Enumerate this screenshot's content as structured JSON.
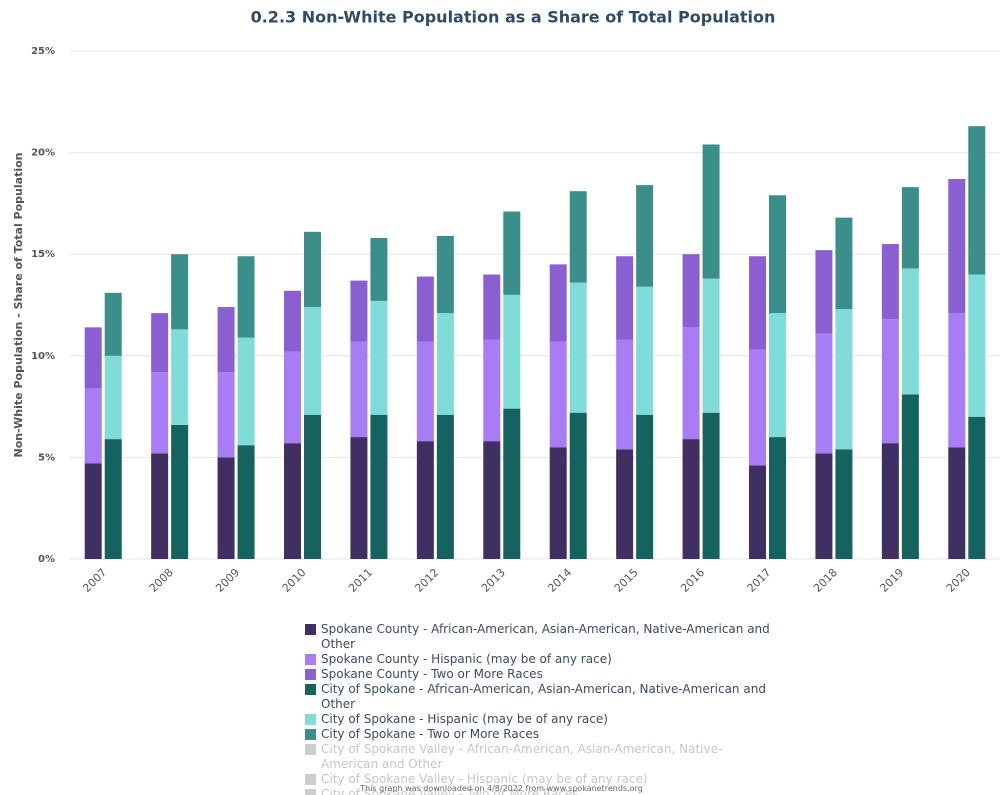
{
  "chart_data": {
    "type": "stacked-grouped-bar",
    "title": "0.2.3 Non-White Population as a Share of Total Population",
    "y_label": "Non-White Population - Share of Total Population",
    "footer": "This graph was downloaded on 4/8/2022 from www.spokanetrends.org",
    "categories": [
      "2007",
      "2008",
      "2009",
      "2010",
      "2011",
      "2012",
      "2013",
      "2014",
      "2015",
      "2016",
      "2017",
      "2018",
      "2019",
      "2020"
    ],
    "ylim": [
      0,
      25
    ],
    "yticks": [
      {
        "value": 0,
        "label": "0%"
      },
      {
        "value": 5,
        "label": "5%"
      },
      {
        "value": 10,
        "label": "10%"
      },
      {
        "value": 15,
        "label": "15%"
      },
      {
        "value": 20,
        "label": "20%"
      },
      {
        "value": 25,
        "label": "25%"
      }
    ],
    "grid": true,
    "series": [
      {
        "name": "Spokane County - African-American, Asian-American, Native-American and Other",
        "stack": "county",
        "color": "#3f2f63",
        "visible": true,
        "values": [
          4.7,
          5.2,
          5.0,
          5.7,
          6.0,
          5.8,
          5.8,
          5.5,
          5.4,
          5.9,
          4.6,
          5.2,
          5.7,
          5.5
        ]
      },
      {
        "name": "Spokane County - Hispanic (may be of any race)",
        "stack": "county",
        "color": "#a77cf5",
        "visible": true,
        "values": [
          3.7,
          4.0,
          4.2,
          4.5,
          4.7,
          4.9,
          5.0,
          5.2,
          5.4,
          5.5,
          5.7,
          5.9,
          6.1,
          6.6
        ]
      },
      {
        "name": "Spokane County - Two or More Races",
        "stack": "county",
        "color": "#8a5fd1",
        "visible": true,
        "values": [
          3.0,
          2.9,
          3.2,
          3.0,
          3.0,
          3.2,
          3.2,
          3.8,
          4.1,
          3.6,
          4.6,
          4.1,
          3.7,
          6.6
        ]
      },
      {
        "name": "City of Spokane - African-American, Asian-American, Native-American and Other",
        "stack": "city",
        "color": "#14635e",
        "visible": true,
        "values": [
          5.9,
          6.6,
          5.6,
          7.1,
          7.1,
          7.1,
          7.4,
          7.2,
          7.1,
          7.2,
          6.0,
          5.4,
          8.1,
          7.0
        ]
      },
      {
        "name": "City of Spokane - Hispanic (may be of any race)",
        "stack": "city",
        "color": "#7fdcd9",
        "visible": true,
        "values": [
          4.1,
          4.7,
          5.3,
          5.3,
          5.6,
          5.0,
          5.6,
          6.4,
          6.3,
          6.6,
          6.1,
          6.9,
          6.2,
          7.0
        ]
      },
      {
        "name": "City of Spokane - Two or More Races",
        "stack": "city",
        "color": "#3a8f8a",
        "visible": true,
        "values": [
          3.1,
          3.7,
          4.0,
          3.7,
          3.1,
          3.8,
          4.1,
          4.5,
          5.0,
          6.6,
          5.8,
          4.5,
          4.0,
          7.3
        ]
      },
      {
        "name": "City of Spokane Valley - African-American, Asian-American, Native-American and Other",
        "stack": "valley",
        "color": "#cccccc",
        "visible": false,
        "values": [
          null,
          null,
          null,
          null,
          null,
          null,
          null,
          null,
          null,
          null,
          null,
          null,
          null,
          null
        ]
      },
      {
        "name": "City of Spokane Valley - Hispanic (may be of any race)",
        "stack": "valley",
        "color": "#cccccc",
        "visible": false,
        "values": [
          null,
          null,
          null,
          null,
          null,
          null,
          null,
          null,
          null,
          null,
          null,
          null,
          null,
          null
        ]
      },
      {
        "name": "City of Spokane Valley - Two or More Races",
        "stack": "valley",
        "color": "#cccccc",
        "visible": false,
        "values": [
          null,
          null,
          null,
          null,
          null,
          null,
          null,
          null,
          null,
          null,
          null,
          null,
          null,
          null
        ]
      }
    ]
  }
}
